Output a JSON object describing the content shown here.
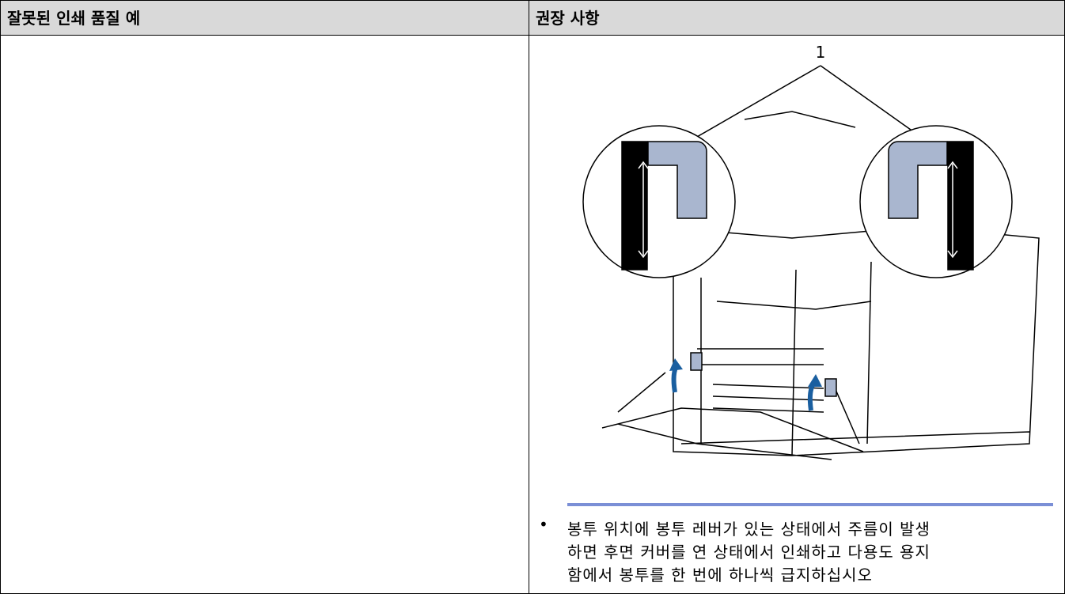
{
  "table": {
    "headers": [
      "잘못된 인쇄 품질 예",
      "권장 사항"
    ],
    "rows": [
      {
        "illustration_label": "1",
        "bullet_lines": [
          "봉투 위치에 봉투 레버가 있는 상태에서 주름이 발생",
          "하면 후면 커버를 연 상태에서 인쇄하고 다용도 용지",
          "함에서 봉투를 한 번에 하나씩 급지하십시오"
        ]
      }
    ]
  }
}
